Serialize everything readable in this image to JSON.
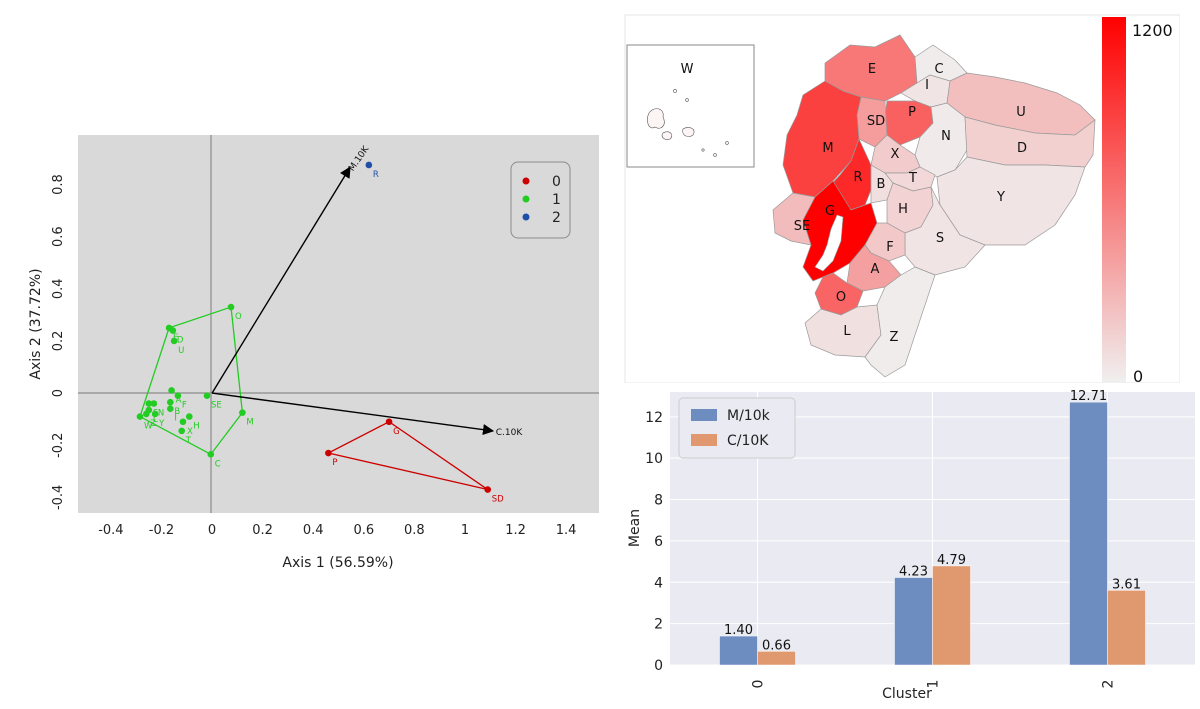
{
  "chart_data": [
    {
      "type": "scatter",
      "xlabel": "Axis 1 (56.59%)",
      "ylabel": "Axis 2 (37.72%)",
      "xlim": [
        -0.53,
        1.53
      ],
      "ylim": [
        -0.46,
        0.99
      ],
      "xticks": [
        "-0.4",
        "-0.2",
        "0",
        "0.2",
        "0.4",
        "0.6",
        "0.8",
        "1",
        "1.2",
        "1.4"
      ],
      "yticks": [
        "-0.4",
        "-0.2",
        "0",
        "0.2",
        "0.4",
        "0.6",
        "0.8"
      ],
      "grid": false,
      "legend_position": "top-right",
      "colors": {
        "0": "#cc0000",
        "1": "#22cc22",
        "2": "#1f4fa8"
      },
      "series": [
        {
          "name": "0",
          "points": [
            {
              "label": "G",
              "x": 0.7,
              "y": -0.11
            },
            {
              "label": "P",
              "x": 0.46,
              "y": -0.23
            },
            {
              "label": "SD",
              "x": 1.09,
              "y": -0.37
            }
          ]
        },
        {
          "name": "1",
          "points": [
            {
              "label": "O",
              "x": 0.075,
              "y": 0.33
            },
            {
              "label": "E",
              "x": -0.17,
              "y": 0.25
            },
            {
              "label": "D",
              "x": -0.155,
              "y": 0.24
            },
            {
              "label": "U",
              "x": -0.15,
              "y": 0.2
            },
            {
              "label": "SE",
              "x": -0.02,
              "y": -0.01
            },
            {
              "label": "A",
              "x": -0.16,
              "y": 0.01
            },
            {
              "label": "F",
              "x": -0.135,
              "y": -0.01
            },
            {
              "label": "S",
              "x": -0.25,
              "y": -0.04
            },
            {
              "label": "N",
              "x": -0.23,
              "y": -0.04
            },
            {
              "label": "B",
              "x": -0.165,
              "y": -0.035
            },
            {
              "label": "L",
              "x": -0.25,
              "y": -0.065
            },
            {
              "label": "I",
              "x": -0.165,
              "y": -0.06
            },
            {
              "label": "Z",
              "x": -0.26,
              "y": -0.08
            },
            {
              "label": "Y",
              "x": -0.225,
              "y": -0.08
            },
            {
              "label": "W",
              "x": -0.285,
              "y": -0.09
            },
            {
              "label": "H",
              "x": -0.09,
              "y": -0.09
            },
            {
              "label": "X",
              "x": -0.115,
              "y": -0.11
            },
            {
              "label": "T",
              "x": -0.12,
              "y": -0.145
            },
            {
              "label": "M",
              "x": 0.12,
              "y": -0.075
            },
            {
              "label": "C",
              "x": -0.005,
              "y": -0.235
            }
          ]
        },
        {
          "name": "2",
          "points": [
            {
              "label": "R",
              "x": 0.62,
              "y": 0.875
            }
          ]
        }
      ],
      "hull_order": {
        "1": [
          "O",
          "E",
          "W",
          "C",
          "M"
        ],
        "0": [
          "G",
          "P",
          "SD"
        ]
      },
      "vectors": [
        {
          "label": "M.10K",
          "x": 0.545,
          "y": 0.865
        },
        {
          "label": "C.10K",
          "x": 1.11,
          "y": -0.145
        }
      ]
    },
    {
      "type": "heatmap",
      "colorbar": {
        "min": 0,
        "max": 1200,
        "min_label": "0",
        "max_label": "1200",
        "low_color": "#f0f0f0",
        "high_color": "#ff0000"
      },
      "inset_label": "W",
      "regions": [
        {
          "label": "E",
          "value": 600
        },
        {
          "label": "C",
          "value": 20
        },
        {
          "label": "I",
          "value": 60
        },
        {
          "label": "U",
          "value": 250
        },
        {
          "label": "P",
          "value": 720
        },
        {
          "label": "SD",
          "value": 420
        },
        {
          "label": "N",
          "value": 30
        },
        {
          "label": "M",
          "value": 880
        },
        {
          "label": "X",
          "value": 180
        },
        {
          "label": "D",
          "value": 160
        },
        {
          "label": "R",
          "value": 1000
        },
        {
          "label": "B",
          "value": 90
        },
        {
          "label": "T",
          "value": 120
        },
        {
          "label": "Y",
          "value": 60
        },
        {
          "label": "G",
          "value": 1200
        },
        {
          "label": "SE",
          "value": 260
        },
        {
          "label": "H",
          "value": 150
        },
        {
          "label": "S",
          "value": 60
        },
        {
          "label": "F",
          "value": 200
        },
        {
          "label": "A",
          "value": 400
        },
        {
          "label": "O",
          "value": 700
        },
        {
          "label": "L",
          "value": 80
        },
        {
          "label": "Z",
          "value": 20
        }
      ]
    },
    {
      "type": "bar",
      "categories": [
        "0",
        "1",
        "2"
      ],
      "xlabel": "Cluster",
      "ylabel": "Mean",
      "ylim": [
        0,
        13.2
      ],
      "yticks": [
        "0",
        "2",
        "4",
        "6",
        "8",
        "10",
        "12"
      ],
      "grid": true,
      "legend_position": "top-left",
      "series": [
        {
          "name": "M/10k",
          "values": [
            1.4,
            4.23,
            12.71
          ],
          "labels": [
            "1.40",
            "4.23",
            "12.71"
          ],
          "color": "#6d8cc0"
        },
        {
          "name": "C/10K",
          "values": [
            0.66,
            4.79,
            3.61
          ],
          "labels": [
            "0.66",
            "4.79",
            "3.61"
          ],
          "color": "#e0986e"
        }
      ]
    }
  ]
}
